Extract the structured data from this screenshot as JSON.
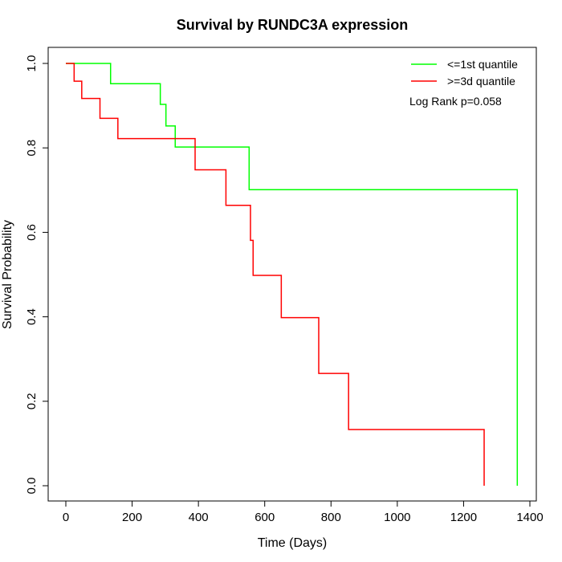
{
  "chart_data": {
    "type": "line",
    "step": true,
    "title": "Survival by RUNDC3A expression",
    "xlabel": "Time (Days)",
    "ylabel": "Survival Probability",
    "xlim": [
      0,
      1400
    ],
    "ylim": [
      0,
      1
    ],
    "xticks": [
      0,
      200,
      400,
      600,
      800,
      1000,
      1200,
      1400
    ],
    "yticks": [
      0.0,
      0.2,
      0.4,
      0.6,
      0.8,
      1.0
    ],
    "xtick_labels": [
      "0",
      "200",
      "400",
      "600",
      "800",
      "1000",
      "1200",
      "1400"
    ],
    "ytick_labels": [
      "0.0",
      "0.2",
      "0.4",
      "0.6",
      "0.8",
      "1.0"
    ],
    "legend_position": "top-right",
    "annotation": "Log Rank p=0.058",
    "series": [
      {
        "name": "<=1st quantile",
        "color": "#00ff00",
        "x": [
          0,
          135,
          285,
          302,
          330,
          553,
          1362
        ],
        "y": [
          1.0,
          0.952,
          0.903,
          0.852,
          0.802,
          0.701,
          0.0
        ]
      },
      {
        "name": ">=3d quantile",
        "color": "#ff0000",
        "x": [
          0,
          25,
          48,
          103,
          157,
          390,
          483,
          557,
          565,
          650,
          763,
          853,
          1262
        ],
        "y": [
          1.0,
          0.958,
          0.917,
          0.87,
          0.822,
          0.748,
          0.664,
          0.581,
          0.498,
          0.398,
          0.266,
          0.133,
          0.0
        ]
      }
    ]
  }
}
